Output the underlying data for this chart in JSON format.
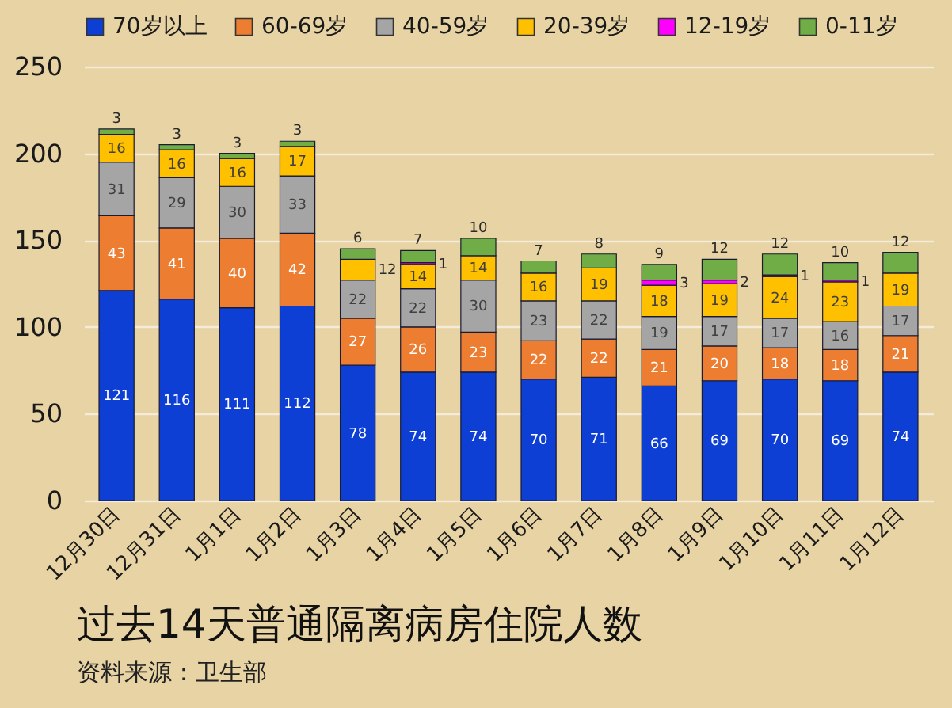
{
  "chart_data": {
    "type": "bar",
    "title": "过去14天普通隔离病房住院人数",
    "annotations": [
      "资料来源：卫生部"
    ],
    "categories": [
      "12月30日",
      "12月31日",
      "1月1日",
      "1月2日",
      "1月3日",
      "1月4日",
      "1月5日",
      "1月6日",
      "1月7日",
      "1月8日",
      "1月9日",
      "1月10日",
      "1月11日",
      "1月12日"
    ],
    "series": [
      {
        "name": "70岁以上",
        "color": "#0d3fd4",
        "values": [
          121,
          116,
          111,
          112,
          78,
          74,
          74,
          70,
          71,
          66,
          69,
          70,
          69,
          74
        ]
      },
      {
        "name": "60-69岁",
        "color": "#ed7d31",
        "values": [
          43,
          41,
          40,
          42,
          27,
          26,
          23,
          22,
          22,
          21,
          20,
          18,
          18,
          21
        ]
      },
      {
        "name": "40-59岁",
        "color": "#a5a5a5",
        "values": [
          31,
          29,
          30,
          33,
          22,
          22,
          30,
          23,
          22,
          19,
          17,
          17,
          16,
          17
        ]
      },
      {
        "name": "20-39岁",
        "color": "#ffc000",
        "values": [
          16,
          16,
          16,
          17,
          12,
          14,
          14,
          16,
          19,
          18,
          19,
          24,
          23,
          19
        ]
      },
      {
        "name": "12-19岁",
        "color": "#ff00ff",
        "values": [
          null,
          null,
          null,
          null,
          null,
          1,
          null,
          null,
          null,
          3,
          2,
          1,
          1,
          null
        ]
      },
      {
        "name": "0-11岁",
        "color": "#70ad47",
        "values": [
          3,
          3,
          3,
          3,
          6,
          7,
          10,
          7,
          8,
          9,
          12,
          12,
          10,
          12
        ]
      }
    ],
    "stacked": true,
    "ylim": [
      0,
      250
    ],
    "yticks": [
      0,
      50,
      100,
      150,
      200,
      250
    ],
    "grid": "y",
    "legend": "top",
    "data_labels": true
  }
}
